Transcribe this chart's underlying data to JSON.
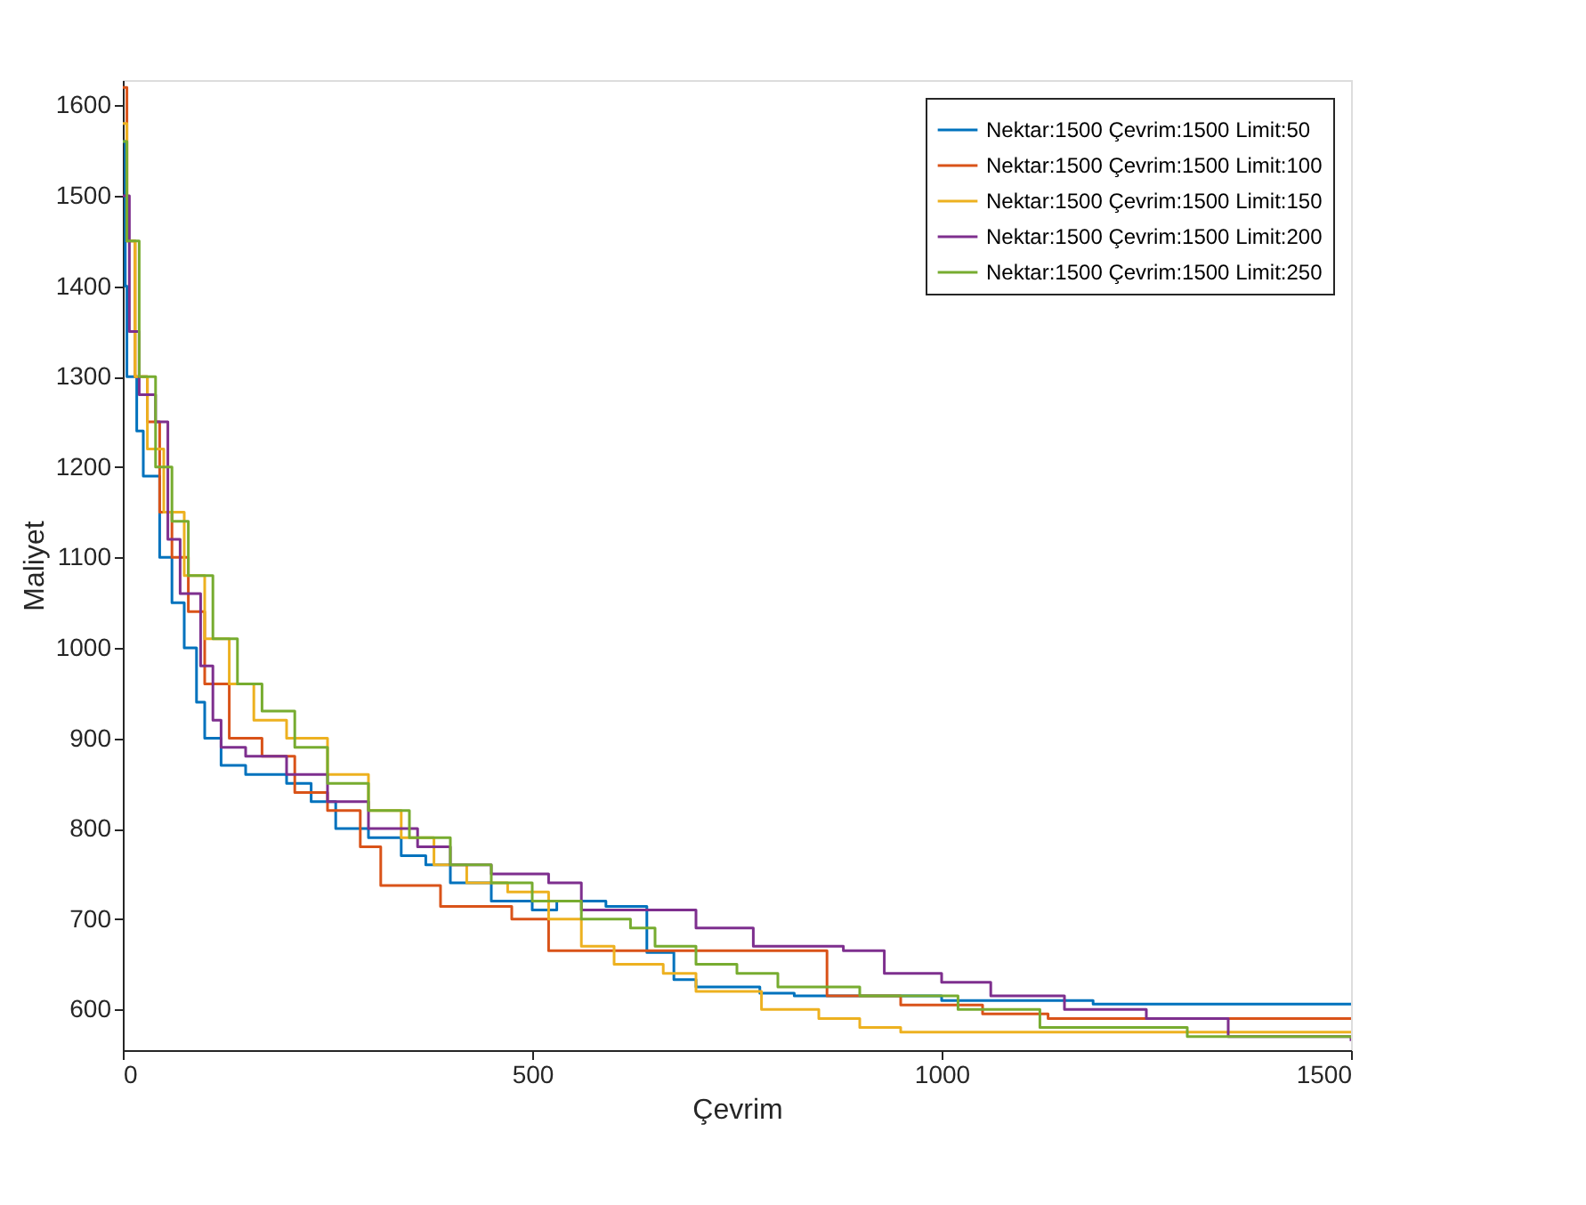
{
  "chart_data": {
    "type": "step",
    "xlabel": "Çevrim",
    "ylabel": "Maliyet",
    "xlim": [
      0,
      1500
    ],
    "ylim": [
      555,
      1628
    ],
    "xticks": [
      0,
      500,
      1000,
      1500
    ],
    "yticks": [
      600,
      700,
      800,
      900,
      1000,
      1100,
      1200,
      1300,
      1400,
      1500,
      1600
    ],
    "grid": false,
    "legend": "top right",
    "line_style": "solid",
    "marker": "none",
    "series": [
      {
        "name": "Nektar:1500 Çevrim:1500 Limit:50",
        "color": "#0072bd",
        "x": [
          0,
          3,
          5,
          17,
          25,
          45,
          60,
          75,
          90,
          100,
          120,
          150,
          200,
          230,
          260,
          300,
          340,
          370,
          400,
          450,
          500,
          530,
          590,
          640,
          673,
          700,
          778,
          820,
          1000,
          1185,
          1500
        ],
        "values": [
          1560,
          1400,
          1300,
          1240,
          1190,
          1100,
          1050,
          1000,
          940,
          900,
          870,
          860,
          850,
          830,
          800,
          790,
          770,
          760,
          740,
          720,
          710,
          720,
          714,
          663,
          633,
          625,
          618,
          615,
          610,
          606,
          606
        ]
      },
      {
        "name": "Nektar:1500 Çevrim:1500 Limit:100",
        "color": "#d95319",
        "x": [
          0,
          5,
          15,
          30,
          45,
          60,
          80,
          100,
          130,
          170,
          210,
          250,
          290,
          315,
          388,
          475,
          520,
          850,
          860,
          950,
          1050,
          1130,
          1500
        ],
        "values": [
          1620,
          1450,
          1300,
          1250,
          1150,
          1100,
          1040,
          960,
          900,
          880,
          840,
          820,
          780,
          737,
          714,
          700,
          665,
          665,
          615,
          605,
          595,
          590,
          590
        ]
      },
      {
        "name": "Nektar:1500 Çevrim:1500 Limit:150",
        "color": "#edb120",
        "x": [
          0,
          5,
          15,
          30,
          50,
          75,
          100,
          130,
          160,
          200,
          250,
          300,
          340,
          380,
          420,
          470,
          520,
          560,
          600,
          660,
          700,
          780,
          850,
          900,
          950,
          1500
        ],
        "values": [
          1580,
          1450,
          1300,
          1220,
          1150,
          1080,
          1010,
          960,
          920,
          900,
          860,
          820,
          790,
          760,
          740,
          730,
          700,
          670,
          650,
          640,
          620,
          600,
          590,
          580,
          575,
          575
        ]
      },
      {
        "name": "Nektar:1500 Çevrim:1500 Limit:200",
        "color": "#7e2f8e",
        "x": [
          0,
          8,
          20,
          40,
          55,
          70,
          95,
          110,
          120,
          150,
          200,
          250,
          300,
          360,
          400,
          450,
          520,
          560,
          680,
          700,
          770,
          880,
          930,
          1000,
          1060,
          1150,
          1250,
          1350,
          1500
        ],
        "values": [
          1500,
          1350,
          1280,
          1250,
          1120,
          1060,
          980,
          920,
          890,
          880,
          860,
          830,
          800,
          780,
          760,
          750,
          740,
          710,
          710,
          690,
          670,
          665,
          640,
          630,
          615,
          600,
          590,
          570,
          565
        ]
      },
      {
        "name": "Nektar:1500 Çevrim:1500 Limit:250",
        "color": "#77ac30",
        "x": [
          0,
          5,
          20,
          40,
          60,
          80,
          110,
          140,
          170,
          210,
          250,
          300,
          350,
          400,
          450,
          500,
          560,
          620,
          650,
          700,
          750,
          800,
          900,
          1020,
          1120,
          1300,
          1500
        ],
        "values": [
          1560,
          1450,
          1300,
          1200,
          1140,
          1080,
          1010,
          960,
          930,
          890,
          850,
          820,
          790,
          760,
          740,
          720,
          700,
          690,
          670,
          650,
          640,
          625,
          615,
          600,
          580,
          570,
          568
        ]
      }
    ]
  }
}
